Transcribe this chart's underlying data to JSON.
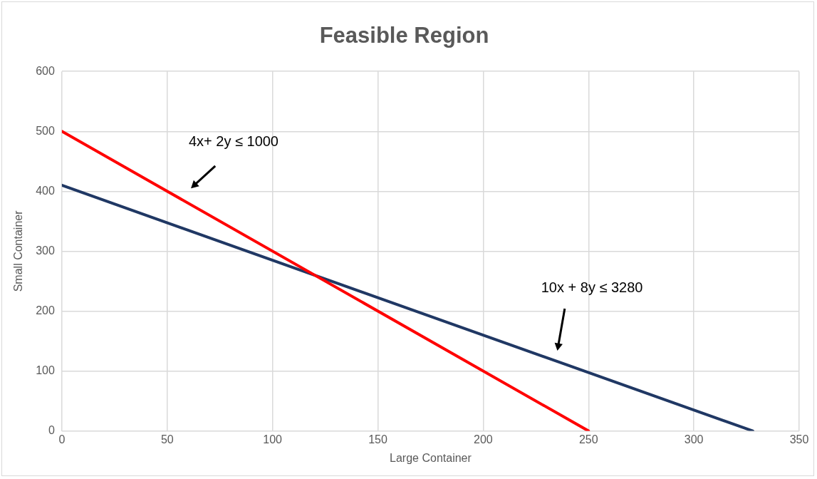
{
  "chart_data": {
    "type": "line",
    "title": "Feasible Region",
    "xlabel": "Large Container",
    "ylabel": "Small Container",
    "xlim": [
      0,
      350
    ],
    "xticks": [
      0,
      50,
      100,
      150,
      200,
      250,
      300,
      350
    ],
    "ylim": [
      0,
      600
    ],
    "yticks": [
      0,
      100,
      200,
      300,
      400,
      500,
      600
    ],
    "grid": true,
    "legend": false,
    "marker": "none",
    "line_style": "solid",
    "series": [
      {
        "x": [
          0,
          250
        ],
        "values": [
          500,
          0
        ],
        "color": "#ff0000"
      },
      {
        "x": [
          0,
          328
        ],
        "values": [
          410,
          0
        ],
        "color": "#203864"
      }
    ],
    "annotations": [
      "4x+ 2y ≤ 1000",
      "10x + 8y ≤ 3280"
    ]
  }
}
